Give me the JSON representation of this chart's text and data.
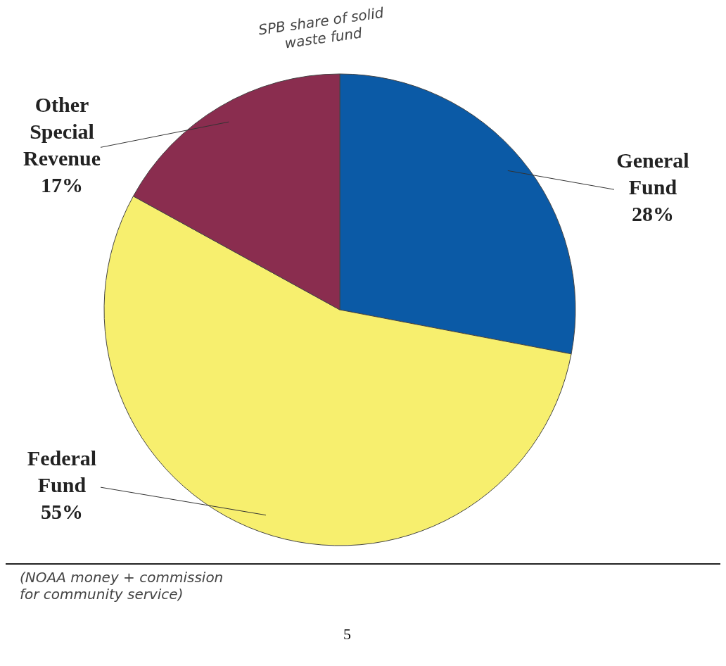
{
  "chart_data": {
    "type": "pie",
    "categories": [
      "General Fund",
      "Federal Fund",
      "Other Special Revenue"
    ],
    "values": [
      28,
      55,
      17
    ],
    "value_labels": [
      "28%",
      "55%",
      "17%"
    ],
    "colors": [
      "#0b5aa6",
      "#f7ef6e",
      "#8a2d4f"
    ],
    "annotations": [
      "SPB share of solid waste fund",
      "(NOAA money + commission for community service)",
      "5"
    ]
  }
}
